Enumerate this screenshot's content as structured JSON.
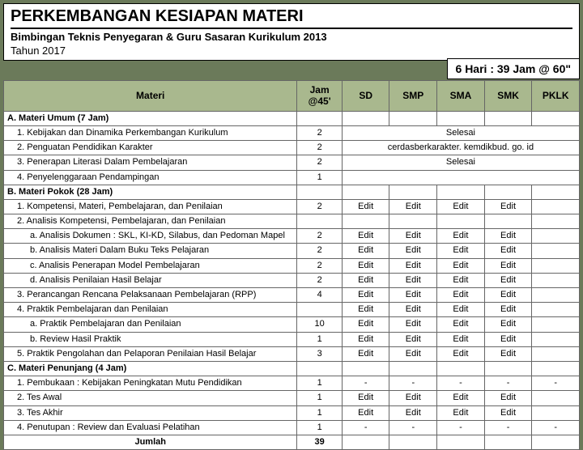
{
  "title": {
    "main": "PERKEMBANGAN KESIAPAN MATERI",
    "sub": "Bimbingan Teknis Penyegaran & Guru Sasaran Kurikulum 2013",
    "year": "Tahun 2017",
    "infobox": "6 Hari : 39 Jam @ 60\""
  },
  "columns": {
    "materi": "Materi",
    "jam": "Jam @45'",
    "sd": "SD",
    "smp": "SMP",
    "sma": "SMA",
    "smk": "SMK",
    "pklk": "PKLK"
  },
  "sections": {
    "a_head": "A. Materi Umum (7 Jam)",
    "b_head": "B. Materi Pokok (28 Jam)",
    "c_head": "C. Materi Penunjang (4 Jam)",
    "jumlah": "Jumlah"
  },
  "rowsA": [
    {
      "text": "1. Kebijakan dan Dinamika Perkembangan Kurikulum",
      "jam": "2",
      "merged": "Selesai"
    },
    {
      "text": "2. Penguatan Pendidikan Karakter",
      "jam": "2",
      "merged": "cerdasberkarakter. kemdikbud. go. id"
    },
    {
      "text": "3. Penerapan Literasi Dalam Pembelajaran",
      "jam": "2",
      "merged": "Selesai"
    },
    {
      "text": "4. Penyelenggaraan Pendampingan",
      "jam": "1",
      "merged": ""
    }
  ],
  "rowsB": [
    {
      "text": "1. Kompetensi, Materi, Pembelajaran, dan Penilaian",
      "indent": "ind1",
      "jam": "2",
      "v": [
        "Edit",
        "Edit",
        "Edit",
        "Edit",
        ""
      ]
    },
    {
      "text": "2. Analisis Kompetensi, Pembelajaran, dan Penilaian",
      "indent": "ind1",
      "jam": "",
      "v": [
        "",
        "",
        "",
        "",
        ""
      ]
    },
    {
      "text": "a. Analisis Dokumen : SKL, KI-KD, Silabus, dan Pedoman Mapel",
      "indent": "ind2",
      "jam": "2",
      "v": [
        "Edit",
        "Edit",
        "Edit",
        "Edit",
        ""
      ]
    },
    {
      "text": "b. Analisis Materi Dalam Buku Teks Pelajaran",
      "indent": "ind2",
      "jam": "2",
      "v": [
        "Edit",
        "Edit",
        "Edit",
        "Edit",
        ""
      ]
    },
    {
      "text": "c. Analisis Penerapan Model Pembelajaran",
      "indent": "ind2",
      "jam": "2",
      "v": [
        "Edit",
        "Edit",
        "Edit",
        "Edit",
        ""
      ]
    },
    {
      "text": "d. Analisis Penilaian Hasil Belajar",
      "indent": "ind2",
      "jam": "2",
      "v": [
        "Edit",
        "Edit",
        "Edit",
        "Edit",
        ""
      ]
    },
    {
      "text": "3. Perancangan Rencana Pelaksanaan Pembelajaran (RPP)",
      "indent": "ind1",
      "jam": "4",
      "v": [
        "Edit",
        "Edit",
        "Edit",
        "Edit",
        ""
      ]
    },
    {
      "text": "4. Praktik Pembelajaran dan Penilaian",
      "indent": "ind1",
      "jam": "",
      "v": [
        "Edit",
        "Edit",
        "Edit",
        "Edit",
        ""
      ]
    },
    {
      "text": "a. Praktik Pembelajaran dan Penilaian",
      "indent": "ind2",
      "jam": "10",
      "v": [
        "Edit",
        "Edit",
        "Edit",
        "Edit",
        ""
      ]
    },
    {
      "text": "b. Review Hasil Praktik",
      "indent": "ind2",
      "jam": "1",
      "v": [
        "Edit",
        "Edit",
        "Edit",
        "Edit",
        ""
      ]
    },
    {
      "text": "5. Praktik Pengolahan dan Pelaporan Penilaian Hasil Belajar",
      "indent": "ind1",
      "jam": "3",
      "v": [
        "Edit",
        "Edit",
        "Edit",
        "Edit",
        ""
      ]
    }
  ],
  "rowsC": [
    {
      "text": "1. Pembukaan : Kebijakan Peningkatan Mutu Pendidikan",
      "jam": "1",
      "v": [
        "-",
        "-",
        "-",
        "-",
        "-"
      ]
    },
    {
      "text": "2. Tes Awal",
      "jam": "1",
      "v": [
        "Edit",
        "Edit",
        "Edit",
        "Edit",
        ""
      ]
    },
    {
      "text": "3. Tes Akhir",
      "jam": "1",
      "v": [
        "Edit",
        "Edit",
        "Edit",
        "Edit",
        ""
      ]
    },
    {
      "text": "4. Penutupan : Review dan Evaluasi Pelatihan",
      "jam": "1",
      "v": [
        "-",
        "-",
        "-",
        "-",
        "-"
      ]
    }
  ],
  "sum": {
    "jam": "39"
  }
}
